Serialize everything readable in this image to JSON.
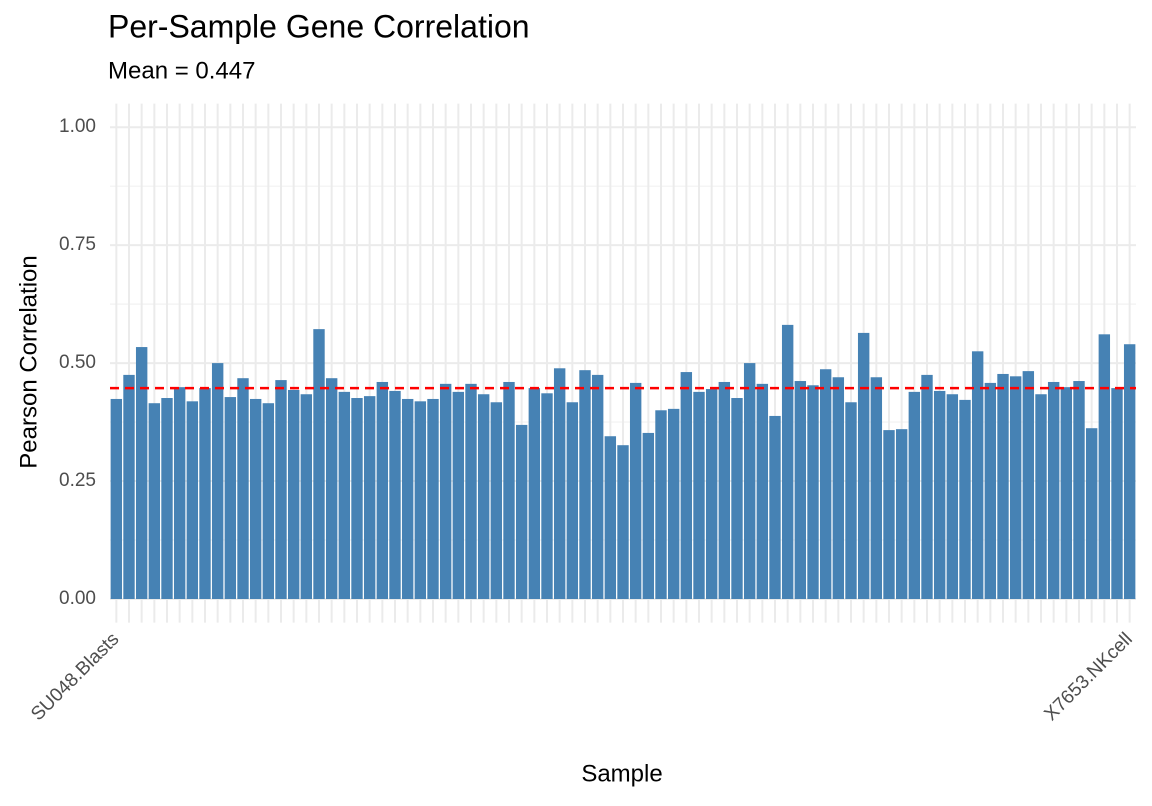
{
  "chart_data": {
    "type": "bar",
    "title": "Per-Sample Gene Correlation",
    "subtitle": "Mean = 0.447",
    "x_label": "Sample",
    "y_label": "Pearson Correlation",
    "categories": [
      "SU048.Blasts",
      null,
      null,
      null,
      null,
      null,
      null,
      null,
      null,
      null,
      null,
      null,
      null,
      null,
      null,
      null,
      null,
      null,
      null,
      null,
      null,
      null,
      null,
      null,
      null,
      null,
      null,
      null,
      null,
      null,
      null,
      null,
      null,
      null,
      null,
      null,
      null,
      null,
      null,
      null,
      null,
      null,
      null,
      null,
      null,
      null,
      null,
      null,
      null,
      null,
      null,
      null,
      null,
      null,
      null,
      null,
      null,
      null,
      null,
      null,
      null,
      null,
      null,
      null,
      null,
      null,
      null,
      null,
      null,
      null,
      null,
      null,
      null,
      null,
      null,
      null,
      null,
      null,
      null,
      null,
      "X7653.NKcell"
    ],
    "values": [
      0.424,
      0.475,
      0.534,
      0.415,
      0.426,
      0.449,
      0.419,
      0.447,
      0.5,
      0.428,
      0.468,
      0.424,
      0.415,
      0.464,
      0.443,
      0.434,
      0.572,
      0.468,
      0.439,
      0.426,
      0.43,
      0.46,
      0.441,
      0.424,
      0.419,
      0.424,
      0.456,
      0.439,
      0.456,
      0.434,
      0.417,
      0.46,
      0.369,
      0.447,
      0.436,
      0.489,
      0.417,
      0.485,
      0.475,
      0.345,
      0.326,
      0.458,
      0.352,
      0.4,
      0.403,
      0.481,
      0.439,
      0.445,
      0.46,
      0.426,
      0.5,
      0.456,
      0.388,
      0.581,
      0.462,
      0.453,
      0.487,
      0.47,
      0.417,
      0.564,
      0.47,
      0.358,
      0.36,
      0.439,
      0.475,
      0.441,
      0.434,
      0.422,
      0.525,
      0.458,
      0.477,
      0.472,
      0.483,
      0.434,
      0.46,
      0.449,
      0.462,
      0.362,
      0.561,
      0.447,
      0.54
    ],
    "color": "#4682b4",
    "mean_line": {
      "value": 0.447,
      "color": "#ff0000"
    },
    "ylim": [
      -0.05,
      1.05
    ],
    "yticks": [
      {
        "value": 0,
        "label": "0.00"
      },
      {
        "value": 0.25,
        "label": "0.25"
      },
      {
        "value": 0.5,
        "label": "0.50"
      },
      {
        "value": 0.75,
        "label": "0.75"
      },
      {
        "value": 1,
        "label": "1.00"
      }
    ],
    "minor_yticks": [
      0.125,
      0.375,
      0.625,
      0.875
    ],
    "grid": true
  }
}
